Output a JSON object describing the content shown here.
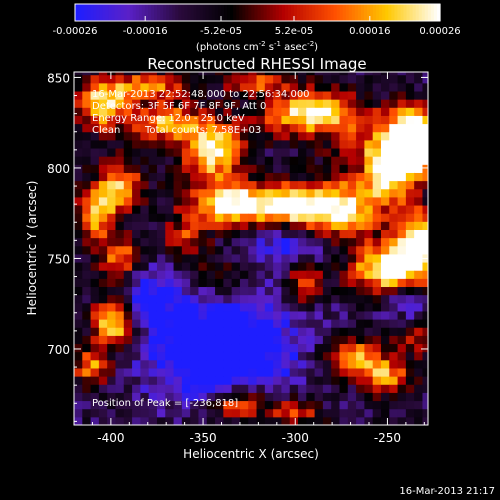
{
  "chart_data": {
    "type": "heatmap",
    "title": "Reconstructed RHESSI Image",
    "xlabel": "Heliocentric X (arcsec)",
    "ylabel": "Heliocentric Y (arcsec)",
    "xlim": [
      -420,
      -228
    ],
    "ylim": [
      658,
      853
    ],
    "xticks": [
      -400,
      -350,
      -300,
      -250
    ],
    "yticks": [
      700,
      750,
      800,
      850
    ],
    "colorbar": {
      "label_parts": [
        "(photons cm",
        "-2",
        " s",
        "-1",
        " asec",
        "-2",
        ")"
      ],
      "range": [
        -0.00026,
        0.00026
      ],
      "ticks": [
        "-0.00026",
        "-0.00016",
        "-5.2e-05",
        "5.2e-05",
        "0.00016",
        "0.00026"
      ],
      "colormap": "RHESSI heat (blue-purple-red-orange-yellow-white)"
    },
    "annotations": {
      "time_range": "16-Mar-2013 22:52:48.000 to 22:56:34.000",
      "detectors": "Detectors: 3F 5F 6F 7F 8F 9F, Att 0",
      "energy_range": "Energy Range: 12.0 - 25.0 keV",
      "method": "Clean",
      "total_counts": "Total counts: 7.58E+03",
      "peak_position": "Position of Peak = [-236,818]"
    },
    "grid": false,
    "legend": "none"
  },
  "footer": {
    "timestamp": "16-Mar-2013 21:17"
  },
  "colors": {
    "background": "#000000",
    "foreground": "#ffffff",
    "cmap": [
      "#1e1eff",
      "#5a20c8",
      "#2a0a3c",
      "#000000",
      "#b40000",
      "#ff5000",
      "#ffc800",
      "#ffffff"
    ]
  }
}
